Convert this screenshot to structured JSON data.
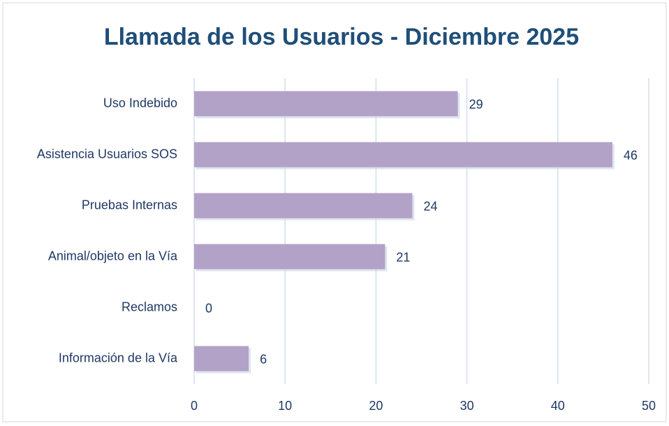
{
  "chart_data": {
    "type": "bar",
    "orientation": "horizontal",
    "title": "Llamada de los Usuarios - Diciembre 2025",
    "categories": [
      "Uso Indebido",
      "Asistencia Usuarios SOS",
      "Pruebas Internas",
      "Animal/objeto en la Vía",
      "Reclamos",
      "Información de la Vía"
    ],
    "values": [
      29,
      46,
      24,
      21,
      0,
      6
    ],
    "color": "#b3a2c7",
    "xlim": [
      0,
      50
    ],
    "xticks": [
      0,
      10,
      20,
      30,
      40,
      50
    ],
    "grid": true
  }
}
